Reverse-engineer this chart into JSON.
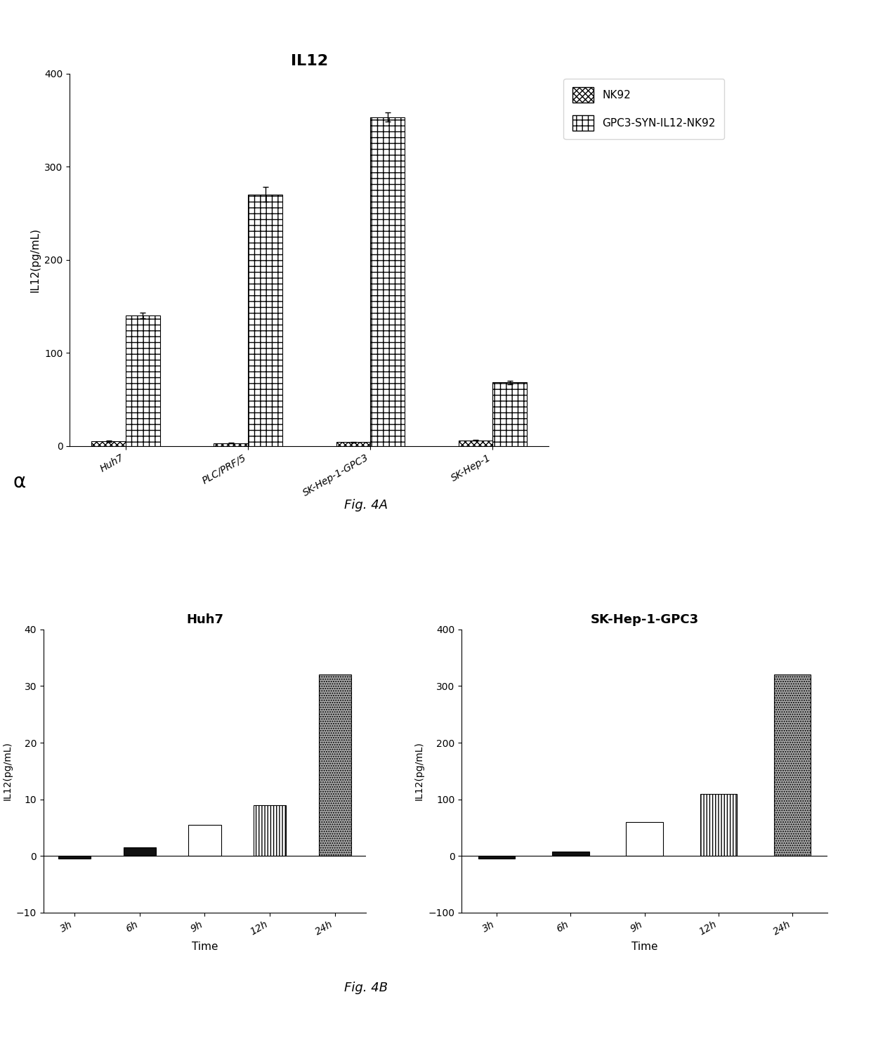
{
  "fig4a": {
    "title": "IL12",
    "ylabel": "IL12(pg/mL)",
    "categories": [
      "Huh7",
      "PLC/PRF/5",
      "SK-Hep-1-GPC3",
      "SK-Hep-1"
    ],
    "nk92_values": [
      5,
      3,
      4,
      6
    ],
    "syn_values": [
      140,
      270,
      353,
      68
    ],
    "syn_errors": [
      3,
      8,
      5,
      2
    ],
    "nk92_errors": [
      0.5,
      0.5,
      0.5,
      0.5
    ],
    "ylim": [
      0,
      400
    ],
    "yticks": [
      0,
      100,
      200,
      300,
      400
    ],
    "legend_labels": [
      "NK92",
      "GPC3-SYN-IL12-NK92"
    ]
  },
  "fig4b_huh7": {
    "title": "Huh7",
    "ylabel": "IL12(pg/mL)",
    "xlabel": "Time",
    "categories": [
      "3h",
      "6h",
      "9h",
      "12h",
      "24h"
    ],
    "values": [
      -0.5,
      1.5,
      5.5,
      9,
      32
    ],
    "ylim": [
      -10,
      40
    ],
    "yticks": [
      -10,
      0,
      10,
      20,
      30,
      40
    ],
    "bar_hatches": [
      "solid_black",
      "solid_black",
      "horizontal",
      "vertical",
      "gray_dot"
    ],
    "bar_colors": [
      "#111111",
      "#111111",
      "white",
      "white",
      "#aaaaaa"
    ],
    "bar_edgecolors": [
      "black",
      "black",
      "black",
      "black",
      "black"
    ]
  },
  "fig4b_gpc3": {
    "title": "SK-Hep-1-GPC3",
    "ylabel": "IL12(pg/mL)",
    "xlabel": "Time",
    "categories": [
      "3h",
      "6h",
      "9h",
      "12h",
      "24h"
    ],
    "values": [
      -5,
      8,
      60,
      110,
      320
    ],
    "ylim": [
      -100,
      400
    ],
    "yticks": [
      -100,
      0,
      100,
      200,
      300,
      400
    ],
    "bar_hatches": [
      "solid_black",
      "solid_black",
      "horizontal",
      "vertical",
      "gray_dot"
    ],
    "bar_colors": [
      "#111111",
      "#111111",
      "white",
      "white",
      "#aaaaaa"
    ],
    "bar_edgecolors": [
      "black",
      "black",
      "black",
      "black",
      "black"
    ]
  },
  "fig4a_caption": "Fig. 4A",
  "fig4b_caption": "Fig. 4B",
  "alpha_label": "α",
  "background_color": "#ffffff",
  "fontsize_title_4a": 16,
  "fontsize_title_4b": 13,
  "fontsize_label": 11,
  "fontsize_tick": 10,
  "fontsize_legend": 11,
  "fontsize_caption": 13,
  "fontsize_alpha": 20
}
